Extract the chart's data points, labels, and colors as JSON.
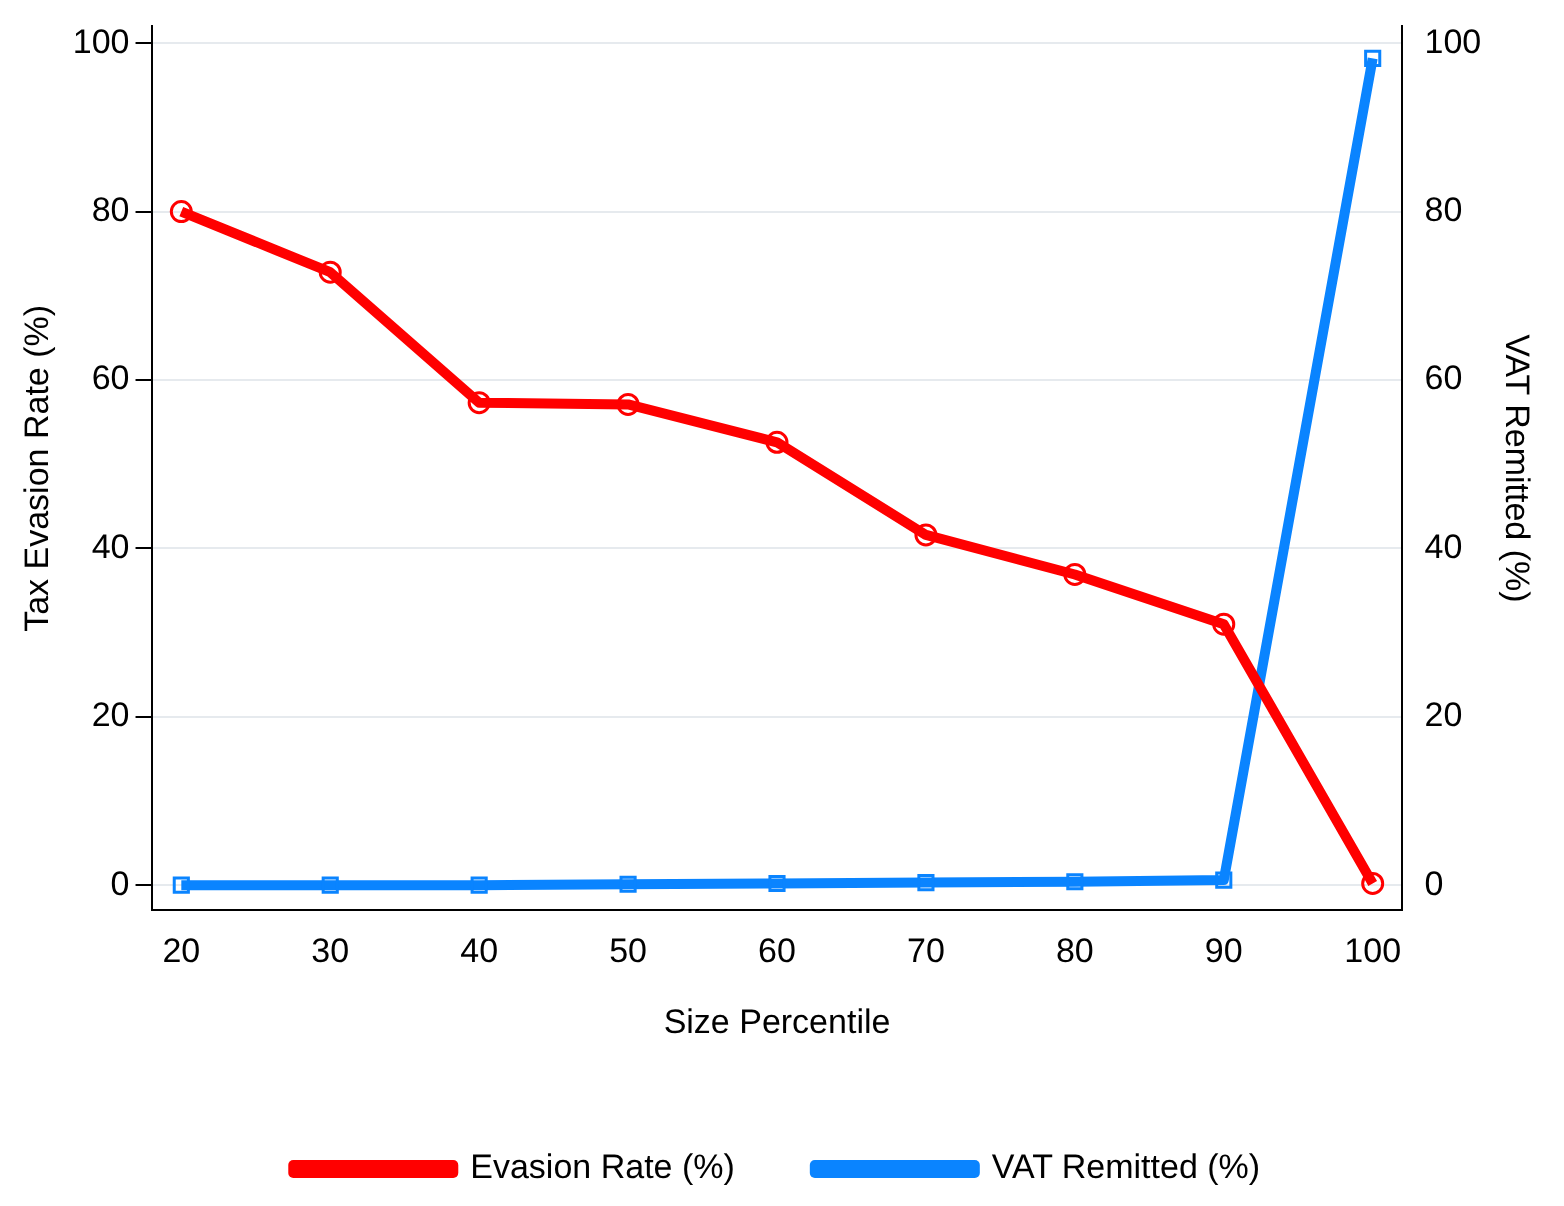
{
  "chart_data": {
    "type": "line",
    "xlabel": "Size Percentile",
    "ylabel": "Tax Evasion Rate (%)",
    "y2label": "VAT Remitted (%)",
    "x": [
      20,
      30,
      40,
      50,
      60,
      70,
      80,
      90,
      100
    ],
    "series": [
      {
        "name": "Evasion Rate (%)",
        "color": "#ff0000",
        "values": [
          80.0,
          72.8,
          57.3,
          57.1,
          52.6,
          41.6,
          36.9,
          31.0,
          0.2
        ]
      },
      {
        "name": "VAT Remitted (%)",
        "color": "#0a84ff",
        "axis": "y2",
        "marker": "square",
        "values": [
          0,
          0,
          0,
          0.1,
          0.2,
          0.3,
          0.4,
          0.6,
          98.2
        ]
      }
    ],
    "xlim": [
      18,
      102
    ],
    "xticks": [
      20,
      30,
      40,
      50,
      60,
      70,
      80,
      90,
      100
    ],
    "ylim": [
      -3,
      102
    ],
    "yticks": [
      0,
      20,
      40,
      60,
      80,
      100
    ],
    "y2lim": [
      -3,
      102
    ],
    "y2ticks": [
      0,
      20,
      40,
      60,
      80,
      100
    ],
    "grid": "y",
    "legend": "bottom",
    "marker": "circle",
    "line_style": "solid"
  }
}
